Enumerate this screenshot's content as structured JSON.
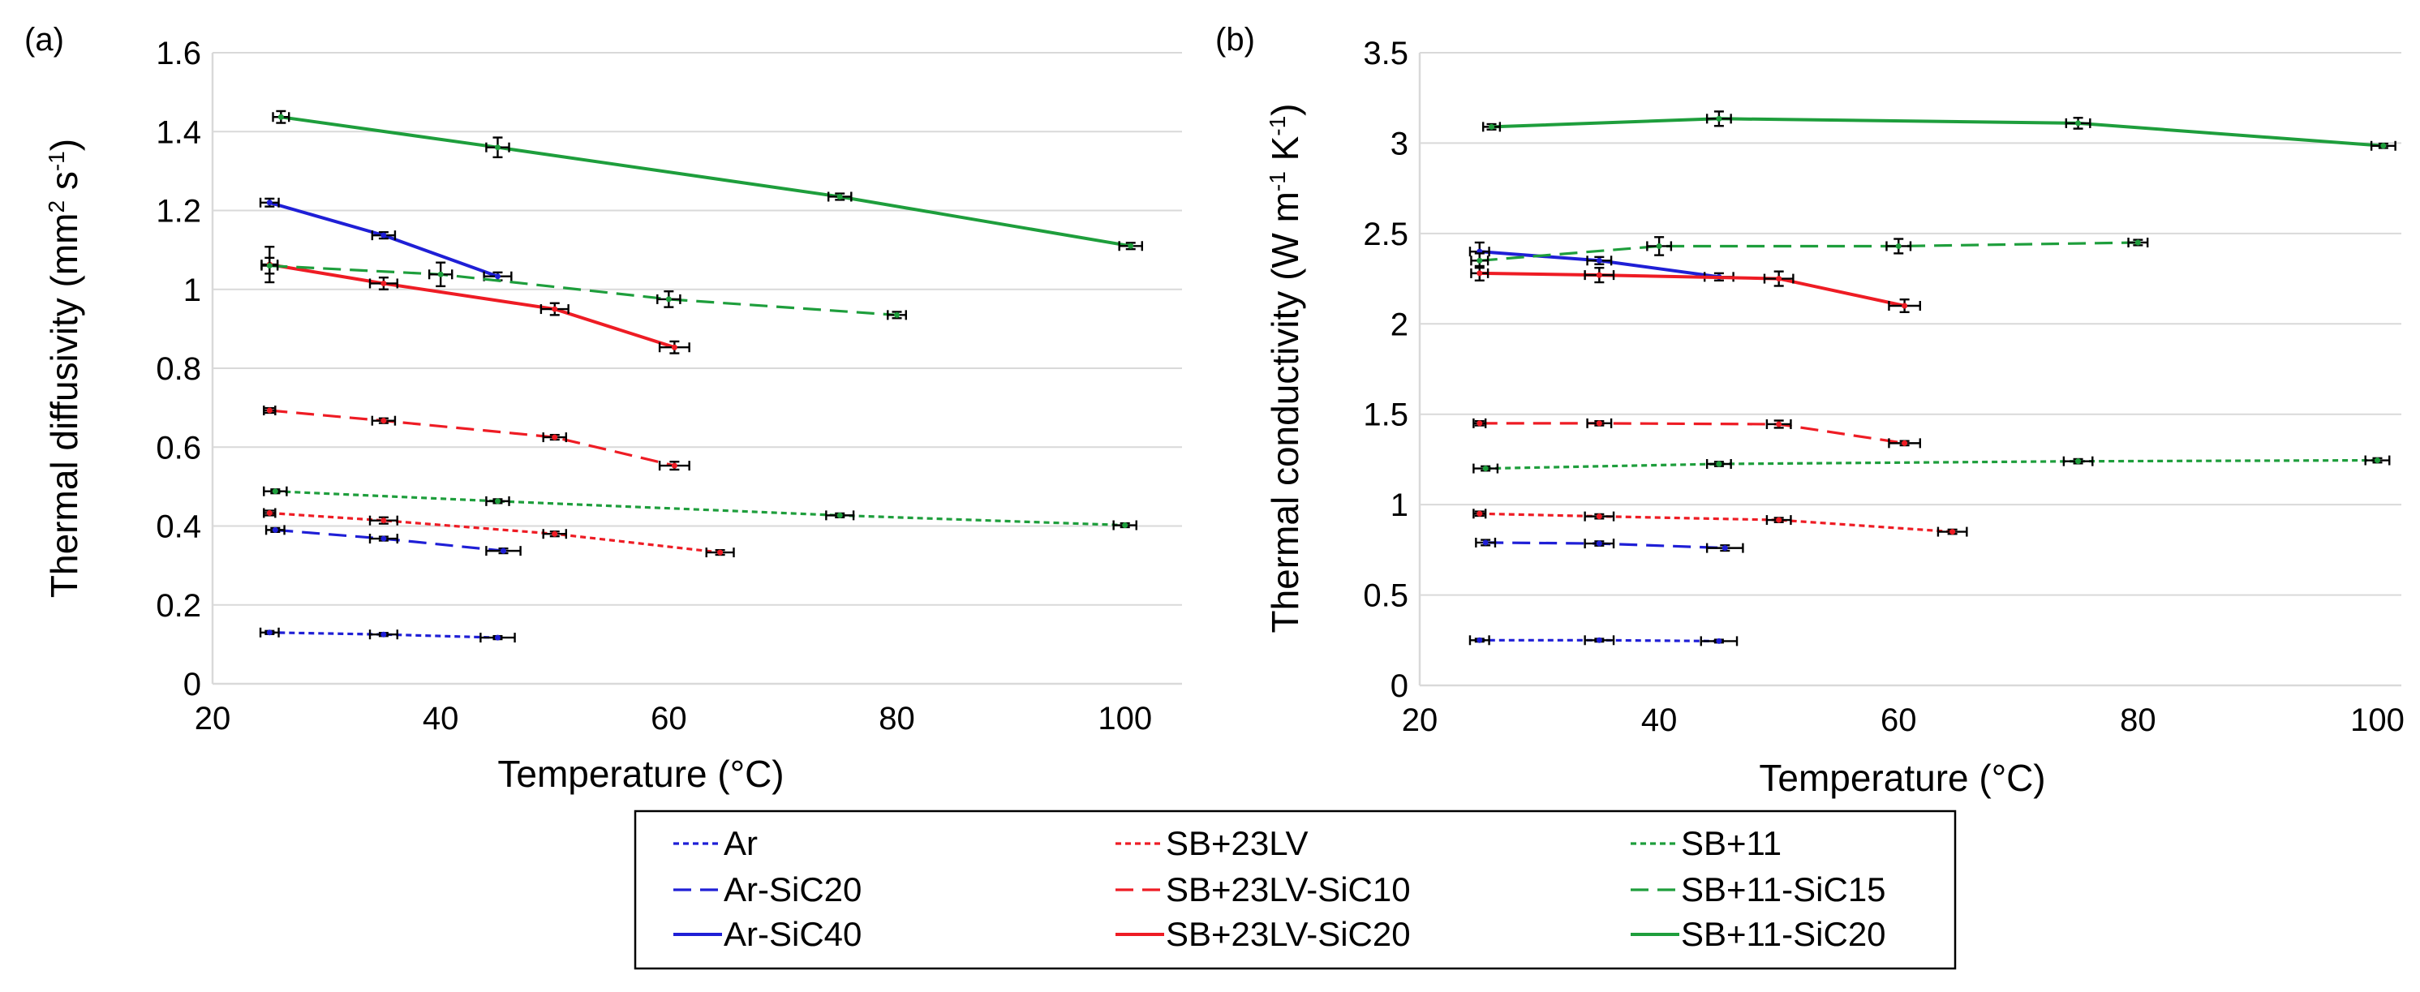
{
  "chart_data": [
    {
      "type": "line",
      "panel_label": "(a)",
      "xlabel": "Temperature (°C)",
      "ylabel": {
        "base": "Thermal diffusivity (mm",
        "sup1": "2",
        "mid": " s",
        "sup2": "-1",
        "end": ")"
      },
      "xlim": [
        20,
        105
      ],
      "ylim": [
        0,
        1.6
      ],
      "xticks": [
        20,
        40,
        60,
        80,
        100
      ],
      "xtick_labels": [
        "20",
        "40",
        "60",
        "80",
        "100"
      ],
      "yticks": [
        0,
        0.2,
        0.4,
        0.6,
        0.8,
        1,
        1.2,
        1.4,
        1.6
      ],
      "ytick_labels": [
        "0",
        "0.2",
        "0.4",
        "0.6",
        "0.8",
        "1",
        "1.2",
        "1.4",
        "1.6"
      ],
      "grid": "horizontal",
      "series": [
        {
          "name": "Ar",
          "color": "#1f1fd6",
          "dash": "dotted",
          "x": [
            25,
            35,
            45
          ],
          "y": [
            0.13,
            0.125,
            0.117
          ],
          "xerr": [
            0.8,
            1.2,
            1.5
          ],
          "yerr": [
            0.004,
            0.004,
            0.004
          ]
        },
        {
          "name": "Ar-SiC20",
          "color": "#1f1fd6",
          "dash": "dashed",
          "x": [
            25.5,
            35,
            45.5
          ],
          "y": [
            0.39,
            0.368,
            0.337
          ],
          "xerr": [
            0.8,
            1.2,
            1.5
          ],
          "yerr": [
            0.005,
            0.005,
            0.006
          ]
        },
        {
          "name": "Ar-SiC40",
          "color": "#1f1fd6",
          "dash": "solid",
          "x": [
            25,
            35,
            45
          ],
          "y": [
            1.22,
            1.137,
            1.033
          ],
          "xerr": [
            0.8,
            1.0,
            1.2
          ],
          "yerr": [
            0.01,
            0.008,
            0.01
          ]
        },
        {
          "name": "SB+23LV",
          "color": "#ee1c24",
          "dash": "dotted",
          "x": [
            25,
            35,
            50,
            64.5
          ],
          "y": [
            0.433,
            0.414,
            0.38,
            0.333
          ],
          "xerr": [
            0.5,
            1.2,
            1.0,
            1.2
          ],
          "yerr": [
            0.006,
            0.008,
            0.006,
            0.006
          ]
        },
        {
          "name": "SB+23LV-SiC10",
          "color": "#ee1c24",
          "dash": "dashed",
          "x": [
            25,
            35,
            50,
            60.5
          ],
          "y": [
            0.693,
            0.667,
            0.625,
            0.553
          ],
          "xerr": [
            0.5,
            1.0,
            1.0,
            1.3
          ],
          "yerr": [
            0.006,
            0.006,
            0.006,
            0.01
          ]
        },
        {
          "name": "SB+23LV-SiC20",
          "color": "#ee1c24",
          "dash": "solid",
          "x": [
            25,
            35,
            50,
            60.5
          ],
          "y": [
            1.063,
            1.015,
            0.95,
            0.853
          ],
          "xerr": [
            0.7,
            1.2,
            1.2,
            1.3
          ],
          "yerr": [
            0.045,
            0.015,
            0.015,
            0.015
          ]
        },
        {
          "name": "SB+11",
          "color": "#1e9e3c",
          "dash": "dotted",
          "x": [
            25.5,
            45,
            75,
            100
          ],
          "y": [
            0.488,
            0.463,
            0.427,
            0.402
          ],
          "xerr": [
            1.0,
            1.0,
            1.2,
            1.0
          ],
          "yerr": [
            0.005,
            0.005,
            0.005,
            0.005
          ]
        },
        {
          "name": "SB+11-SiC15",
          "color": "#1e9e3c",
          "dash": "dashed",
          "x": [
            25,
            40,
            60,
            80
          ],
          "y": [
            1.06,
            1.038,
            0.975,
            0.935
          ],
          "xerr": [
            0.7,
            1.0,
            1.0,
            0.8
          ],
          "yerr": [
            0.02,
            0.03,
            0.02,
            0.008
          ]
        },
        {
          "name": "SB+11-SiC20",
          "color": "#1e9e3c",
          "dash": "solid",
          "x": [
            26,
            45,
            75,
            100.5
          ],
          "y": [
            1.437,
            1.36,
            1.235,
            1.11
          ],
          "xerr": [
            0.7,
            1.0,
            1.0,
            1.0
          ],
          "yerr": [
            0.015,
            0.025,
            0.008,
            0.008
          ]
        }
      ]
    },
    {
      "type": "line",
      "panel_label": "(b)",
      "xlabel": "Temperature (°C)",
      "ylabel": {
        "base": "Thermal conductivity (W m",
        "sup1": "-1",
        "mid": " K",
        "sup2": "-1",
        "end": ")"
      },
      "xlim": [
        20,
        102
      ],
      "ylim": [
        0,
        3.5
      ],
      "xticks": [
        20,
        40,
        60,
        80,
        100
      ],
      "xtick_labels": [
        "20",
        "40",
        "60",
        "80",
        "100"
      ],
      "yticks": [
        0,
        0.5,
        1,
        1.5,
        2,
        2.5,
        3,
        3.5
      ],
      "ytick_labels": [
        "0",
        "0.5",
        "1",
        "1.5",
        "2",
        "2.5",
        "3",
        "3.5"
      ],
      "grid": "horizontal",
      "series": [
        {
          "name": "Ar",
          "color": "#1f1fd6",
          "dash": "dotted",
          "x": [
            25,
            35,
            45
          ],
          "y": [
            0.25,
            0.25,
            0.245
          ],
          "xerr": [
            0.8,
            1.2,
            1.5
          ],
          "yerr": [
            0.008,
            0.008,
            0.008
          ]
        },
        {
          "name": "Ar-SiC20",
          "color": "#1f1fd6",
          "dash": "dashed",
          "x": [
            25.5,
            35,
            45.5
          ],
          "y": [
            0.79,
            0.785,
            0.76
          ],
          "xerr": [
            0.8,
            1.2,
            1.5
          ],
          "yerr": [
            0.015,
            0.012,
            0.015
          ]
        },
        {
          "name": "Ar-SiC40",
          "color": "#1f1fd6",
          "dash": "solid",
          "x": [
            25,
            35,
            45
          ],
          "y": [
            2.4,
            2.35,
            2.26
          ],
          "xerr": [
            0.8,
            1.0,
            1.2
          ],
          "yerr": [
            0.05,
            0.02,
            0.02
          ]
        },
        {
          "name": "SB+23LV",
          "color": "#ee1c24",
          "dash": "dotted",
          "x": [
            25,
            35,
            50,
            64.5
          ],
          "y": [
            0.95,
            0.935,
            0.915,
            0.85
          ],
          "xerr": [
            0.5,
            1.2,
            1.0,
            1.2
          ],
          "yerr": [
            0.012,
            0.012,
            0.012,
            0.012
          ]
        },
        {
          "name": "SB+23LV-SiC10",
          "color": "#ee1c24",
          "dash": "dashed",
          "x": [
            25,
            35,
            50,
            60.5
          ],
          "y": [
            1.45,
            1.45,
            1.445,
            1.34
          ],
          "xerr": [
            0.5,
            1.0,
            1.0,
            1.3
          ],
          "yerr": [
            0.012,
            0.012,
            0.02,
            0.012
          ]
        },
        {
          "name": "SB+23LV-SiC20",
          "color": "#ee1c24",
          "dash": "solid",
          "x": [
            25,
            35,
            50,
            60.5
          ],
          "y": [
            2.28,
            2.27,
            2.25,
            2.1
          ],
          "xerr": [
            0.7,
            1.2,
            1.2,
            1.3
          ],
          "yerr": [
            0.04,
            0.04,
            0.04,
            0.035
          ]
        },
        {
          "name": "SB+11",
          "color": "#1e9e3c",
          "dash": "dotted",
          "x": [
            25.5,
            45,
            75,
            100
          ],
          "y": [
            1.2,
            1.225,
            1.24,
            1.245
          ],
          "xerr": [
            1.0,
            1.0,
            1.2,
            1.0
          ],
          "yerr": [
            0.012,
            0.012,
            0.012,
            0.012
          ]
        },
        {
          "name": "SB+11-SiC15",
          "color": "#1e9e3c",
          "dash": "dashed",
          "x": [
            25,
            40,
            60,
            80
          ],
          "y": [
            2.35,
            2.43,
            2.43,
            2.45
          ],
          "xerr": [
            0.7,
            1.0,
            1.0,
            0.8
          ],
          "yerr": [
            0.04,
            0.05,
            0.04,
            0.015
          ]
        },
        {
          "name": "SB+11-SiC20",
          "color": "#1e9e3c",
          "dash": "solid",
          "x": [
            26,
            45,
            75,
            100.5
          ],
          "y": [
            3.09,
            3.135,
            3.11,
            2.985
          ],
          "xerr": [
            0.7,
            1.0,
            1.0,
            1.0
          ],
          "yerr": [
            0.015,
            0.04,
            0.03,
            0.012
          ]
        }
      ]
    }
  ],
  "legend": {
    "placement": "bottom-center",
    "items": [
      {
        "label": "Ar",
        "color": "#1f1fd6",
        "dash": "dotted"
      },
      {
        "label": "Ar-SiC20",
        "color": "#1f1fd6",
        "dash": "dashed"
      },
      {
        "label": "Ar-SiC40",
        "color": "#1f1fd6",
        "dash": "solid"
      },
      {
        "label": "SB+23LV",
        "color": "#ee1c24",
        "dash": "dotted"
      },
      {
        "label": "SB+23LV-SiC10",
        "color": "#ee1c24",
        "dash": "dashed"
      },
      {
        "label": "SB+23LV-SiC20",
        "color": "#ee1c24",
        "dash": "solid"
      },
      {
        "label": "SB+11",
        "color": "#1e9e3c",
        "dash": "dotted"
      },
      {
        "label": "SB+11-SiC15",
        "color": "#1e9e3c",
        "dash": "dashed"
      },
      {
        "label": "SB+11-SiC20",
        "color": "#1e9e3c",
        "dash": "solid"
      }
    ]
  }
}
